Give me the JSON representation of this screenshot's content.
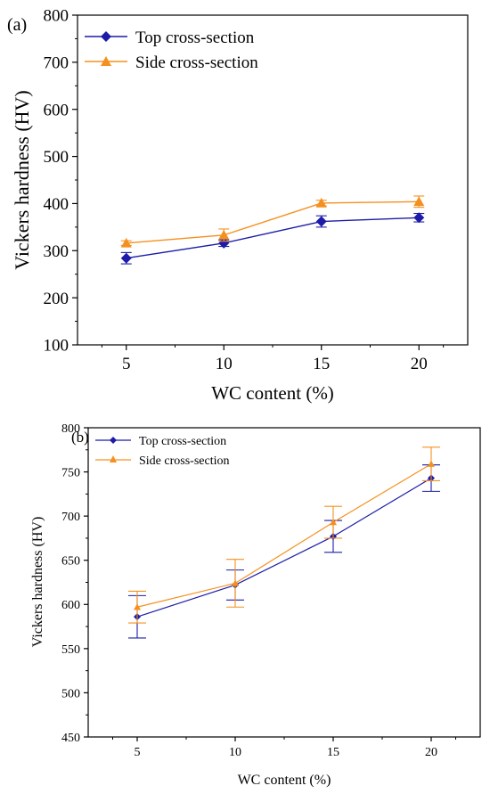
{
  "colors": {
    "top": "#1c1ca8",
    "side": "#f5901e",
    "axis": "#000000"
  },
  "chart_data": [
    {
      "type": "line",
      "panel_label": "(a)",
      "xlabel": "WC content (%)",
      "ylabel": "Vickers hardness (HV)",
      "x": [
        5,
        10,
        15,
        20
      ],
      "xticks": [
        "5",
        "10",
        "15",
        "20"
      ],
      "xlim": [
        2.5,
        22.5
      ],
      "ylim": [
        100,
        800
      ],
      "yticks": [
        "100",
        "200",
        "300",
        "400",
        "500",
        "600",
        "700",
        "800"
      ],
      "legend_position": "top-left",
      "series": [
        {
          "name": "Top cross-section",
          "marker": "diamond",
          "values": [
            284,
            316,
            362,
            370
          ],
          "errors": [
            12,
            7,
            12,
            9
          ]
        },
        {
          "name": "Side cross-section",
          "marker": "triangle",
          "values": [
            316,
            333,
            401,
            404
          ],
          "errors": [
            5,
            13,
            6,
            12
          ]
        }
      ]
    },
    {
      "type": "line",
      "panel_label": "(b)",
      "xlabel": "WC content (%)",
      "ylabel": "Vickers hardness (HV)",
      "x": [
        5,
        10,
        15,
        20
      ],
      "xticks": [
        "5",
        "10",
        "15",
        "20"
      ],
      "xlim": [
        2.5,
        22.5
      ],
      "ylim": [
        450,
        800
      ],
      "yticks": [
        "450",
        "500",
        "550",
        "600",
        "650",
        "700",
        "750",
        "800"
      ],
      "legend_position": "top-left",
      "series": [
        {
          "name": "Top cross-section",
          "marker": "diamond",
          "values": [
            586,
            622,
            677,
            743
          ],
          "errors": [
            24,
            17,
            18,
            15
          ]
        },
        {
          "name": "Side cross-section",
          "marker": "triangle",
          "values": [
            597,
            624,
            693,
            759
          ],
          "errors": [
            18,
            27,
            18,
            19
          ]
        }
      ]
    }
  ]
}
